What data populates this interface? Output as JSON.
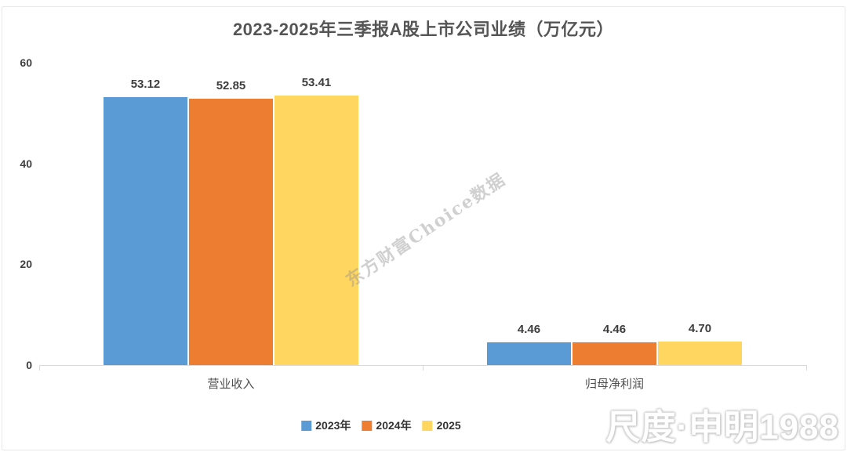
{
  "chart_data": {
    "type": "bar",
    "title": "2023-2025年三季报A股上市公司业绩（万亿元）",
    "categories": [
      "营业收入",
      "归母净利润"
    ],
    "series": [
      {
        "name": "2023年",
        "color": "#5B9BD5",
        "values": [
          53.12,
          4.46
        ]
      },
      {
        "name": "2024年",
        "color": "#ED7D31",
        "values": [
          52.85,
          4.46
        ]
      },
      {
        "name": "2025",
        "color": "#FFD65F",
        "values": [
          53.41,
          4.7
        ]
      }
    ],
    "xlabel": "",
    "ylabel": "",
    "ylim": [
      0,
      60
    ],
    "yticks": [
      0,
      20,
      40,
      60
    ],
    "grid": false,
    "legend_position": "bottom",
    "value_label_decimals": 2,
    "axis_color": "#d9d9d9"
  },
  "watermarks": {
    "center": "东方财富Choice数据",
    "corner": "尺度·申明1988"
  }
}
